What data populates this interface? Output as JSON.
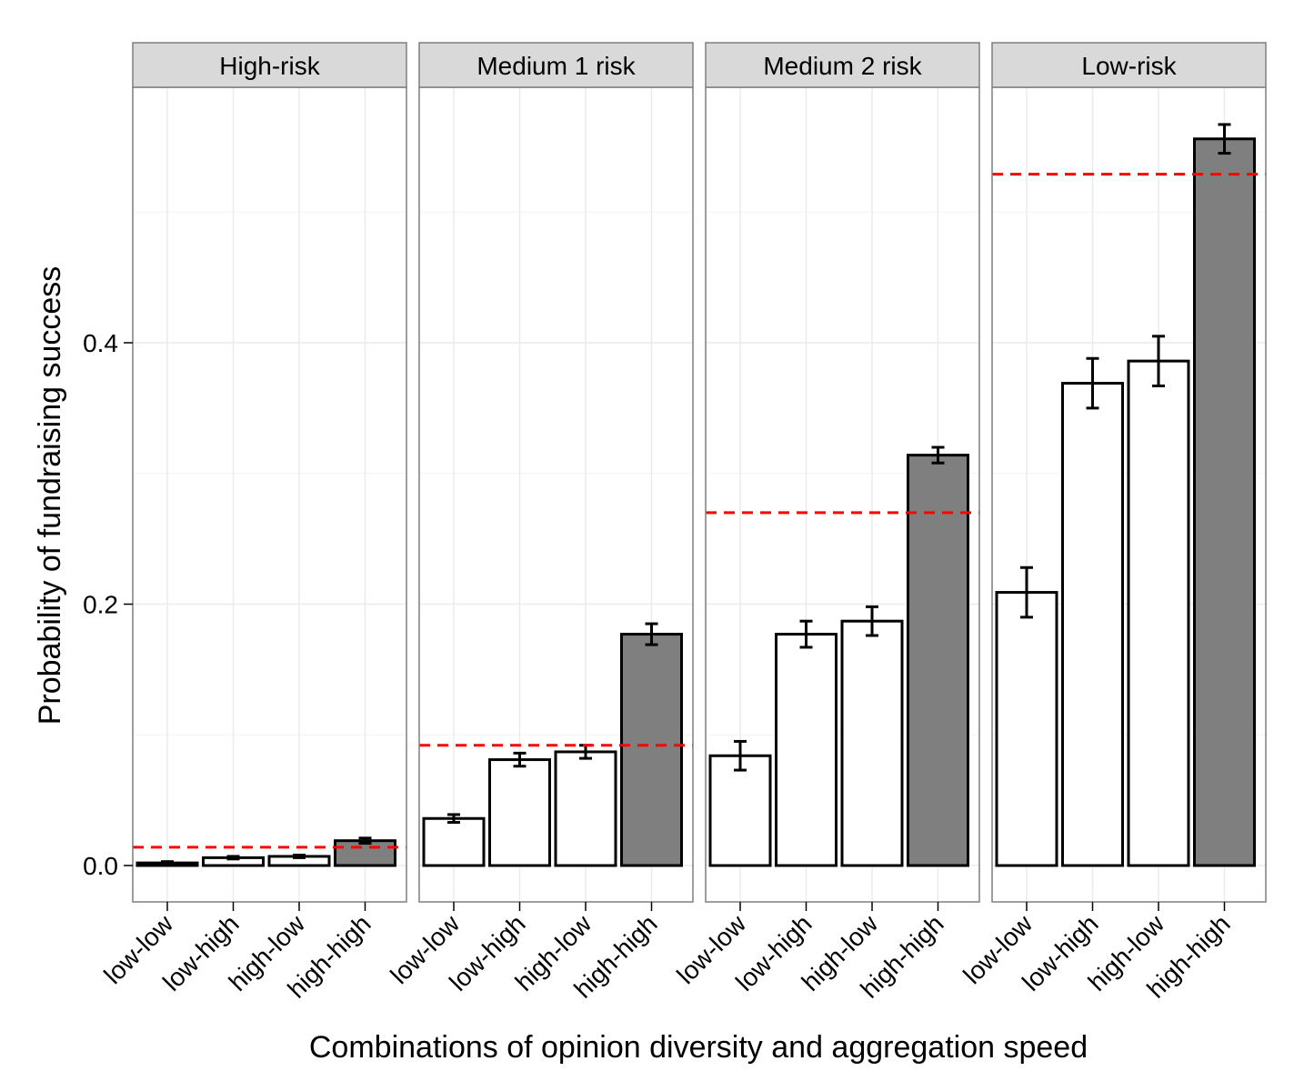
{
  "chart_data": {
    "type": "bar",
    "facet_style": "faceted bar chart with error bars and dashed reference line",
    "xlabel": "Combinations of opinion diversity and aggregation speed",
    "ylabel": "Probability of fundraising success",
    "ylim": [
      -0.03,
      0.58
    ],
    "yticks": [
      0.0,
      0.2,
      0.4
    ],
    "ytick_labels": [
      "0.0",
      "0.2",
      "0.4"
    ],
    "categories": [
      "low-low",
      "low-high",
      "high-low",
      "high-high"
    ],
    "highlight_category": "high-high",
    "colors": {
      "bar_fill": "#ffffff",
      "highlight_fill": "#7f7f7f",
      "bar_stroke": "#000000",
      "reference_line": "#ff0000",
      "strip_fill": "#d9d9d9",
      "grid": "#ebebeb"
    },
    "panels": [
      {
        "name": "High-risk",
        "values": [
          0.002,
          0.006,
          0.007,
          0.019
        ],
        "err": [
          0.001,
          0.001,
          0.001,
          0.002
        ],
        "reference": 0.014
      },
      {
        "name": "Medium 1 risk",
        "values": [
          0.036,
          0.081,
          0.087,
          0.177
        ],
        "err": [
          0.003,
          0.005,
          0.005,
          0.008
        ],
        "reference": 0.092
      },
      {
        "name": "Medium 2 risk",
        "values": [
          0.084,
          0.177,
          0.187,
          0.314
        ],
        "err": [
          0.011,
          0.01,
          0.011,
          0.006
        ],
        "reference": 0.27
      },
      {
        "name": "Low-risk",
        "values": [
          0.209,
          0.369,
          0.386,
          0.556
        ],
        "err": [
          0.019,
          0.019,
          0.019,
          0.011
        ],
        "reference": 0.529
      }
    ]
  }
}
